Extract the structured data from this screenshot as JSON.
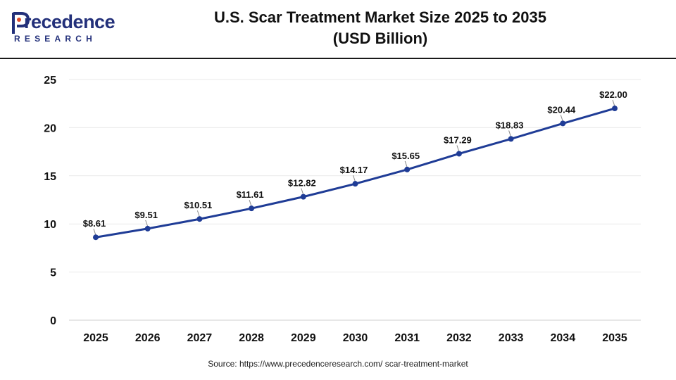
{
  "brand": {
    "name_part1": "P",
    "name_part2": "recedence",
    "subtitle": "RESEARCH",
    "color": "#23307a"
  },
  "header": {
    "title_line1": "U.S. Scar Treatment Market Size 2025 to 2035",
    "title_line2": "(USD Billion)"
  },
  "chart_data": {
    "type": "line",
    "title": "U.S. Scar Treatment Market Size 2025 to 2035 (USD Billion)",
    "xlabel": "",
    "ylabel": "",
    "x": [
      "2025",
      "2026",
      "2027",
      "2028",
      "2029",
      "2030",
      "2031",
      "2032",
      "2033",
      "2034",
      "2035"
    ],
    "series": [
      {
        "values": [
          8.61,
          9.51,
          10.51,
          11.61,
          12.82,
          14.17,
          15.65,
          17.29,
          18.83,
          20.44,
          22.0
        ],
        "labels": [
          "$8.61",
          "$9.51",
          "$10.51",
          "$11.61",
          "$12.82",
          "$14.17",
          "$15.65",
          "$17.29",
          "$18.83",
          "$20.44",
          "$22.00"
        ],
        "color": "#1f3c96"
      }
    ],
    "ylim": [
      0,
      25
    ],
    "yticks": [
      "0",
      "5",
      "10",
      "15",
      "20",
      "25"
    ],
    "grid": true,
    "legend": "none"
  },
  "source": {
    "text": "Source: https://www.precedenceresearch.com/ scar-treatment-market"
  }
}
